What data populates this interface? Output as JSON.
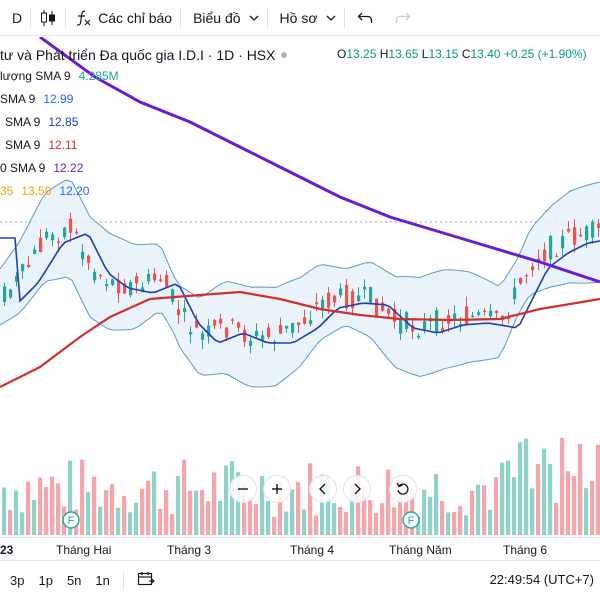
{
  "toolbar": {
    "interval": "D",
    "indicators_label": "Các chỉ báo",
    "chart_type_label": "Biểu đồ",
    "profile_label": "Hồ sơ"
  },
  "legend": {
    "title": "tư và Phát triển Đa quốc gia I.D.I · 1D · HSX",
    "ohlc": {
      "o_label": "O",
      "o": "13.25",
      "h_label": "H",
      "h": "13.65",
      "l_label": "L",
      "l": "13.15",
      "c_label": "C",
      "c": "13.40",
      "change": "+0.25 (+1.90%)"
    },
    "indicators": [
      {
        "name": "lượng SMA 9",
        "values": [
          "4.285M"
        ],
        "colors": [
          "#22a699"
        ]
      },
      {
        "name": "SMA 9",
        "values": [
          "12.99"
        ],
        "colors": [
          "#2962ff"
        ]
      },
      {
        "name": "SMA 9",
        "values": [
          "12.85"
        ],
        "colors": [
          "#1e40af"
        ]
      },
      {
        "name": "SMA 9",
        "values": [
          "12.11"
        ],
        "colors": [
          "#d32f2f"
        ]
      },
      {
        "name": "0 SMA 9",
        "values": [
          "12.22"
        ],
        "colors": [
          "#6a1bd6"
        ]
      },
      {
        "name": "35",
        "values": [
          "13.50",
          "12.20"
        ],
        "colors": [
          "#f59e0b",
          "#2962ff"
        ]
      }
    ]
  },
  "colors": {
    "up": "#26a69a",
    "down": "#ef5350",
    "vol_up": "#8fd3c8",
    "vol_down": "#f6a5ab",
    "bb_band": "#5b9cc2",
    "bb_fill": "#e3f0f8",
    "ma_fast": "#1e40af",
    "ma_red": "#d32f2f",
    "ma_purple": "#6a1bd6",
    "change_green": "#089981"
  },
  "event_marker_label": "F",
  "xaxis": {
    "labels": [
      "23",
      "Tháng Hai",
      "Tháng 3",
      "Tháng 4",
      "Tháng Năm",
      "Tháng 6"
    ]
  },
  "bottombar": {
    "ranges": [
      "3p",
      "1p",
      "5n",
      "1n"
    ],
    "clock": "22:49:54 (UTC+7)"
  }
}
